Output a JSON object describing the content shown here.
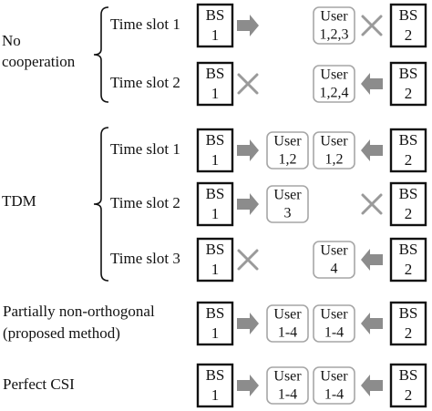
{
  "colors": {
    "stroke": "#111111",
    "arrow": "#8c8c8c",
    "user_border": "#a6a6a6",
    "cross": "#9a9a9a",
    "text": "#111111"
  },
  "icons": {
    "arrow": "right-arrow-icon / left-arrow-icon",
    "cross": "cross-icon"
  },
  "groups": [
    {
      "id": "no-cooperation",
      "label_lines": [
        "No",
        "cooperation"
      ]
    },
    {
      "id": "tdm",
      "label_lines": [
        "TDM"
      ]
    }
  ],
  "rows": [
    {
      "slot": "Time slot 1",
      "left_bs": [
        "BS",
        "1"
      ],
      "left_state": "arrow",
      "user_left": null,
      "user_right": [
        "User",
        "1,2,3"
      ],
      "right_state": "cross",
      "right_bs": [
        "BS",
        "2"
      ]
    },
    {
      "slot": "Time slot 2",
      "left_bs": [
        "BS",
        "1"
      ],
      "left_state": "cross",
      "user_left": null,
      "user_right": [
        "User",
        "1,2,4"
      ],
      "right_state": "arrow",
      "right_bs": [
        "BS",
        "2"
      ]
    },
    {
      "slot": "Time slot 1",
      "left_bs": [
        "BS",
        "1"
      ],
      "left_state": "arrow",
      "user_left": [
        "User",
        "1,2"
      ],
      "user_right": [
        "User",
        "1,2"
      ],
      "right_state": "arrow",
      "right_bs": [
        "BS",
        "2"
      ]
    },
    {
      "slot": "Time slot 2",
      "left_bs": [
        "BS",
        "1"
      ],
      "left_state": "arrow",
      "user_left": [
        "User",
        "3"
      ],
      "user_right": null,
      "right_state": "cross",
      "right_bs": [
        "BS",
        "2"
      ]
    },
    {
      "slot": "Time slot 3",
      "left_bs": [
        "BS",
        "1"
      ],
      "left_state": "cross",
      "user_left": null,
      "user_right": [
        "User",
        "4"
      ],
      "right_state": "arrow",
      "right_bs": [
        "BS",
        "2"
      ]
    },
    {
      "slot": "",
      "label_lines": [
        "Partially non-orthogonal",
        "(proposed method)"
      ],
      "left_bs": [
        "BS",
        "1"
      ],
      "left_state": "arrow",
      "user_left": [
        "User",
        "1-4"
      ],
      "user_right": [
        "User",
        "1-4"
      ],
      "right_state": "arrow",
      "right_bs": [
        "BS",
        "2"
      ]
    },
    {
      "slot": "",
      "label_lines": [
        "Perfect CSI"
      ],
      "left_bs": [
        "BS",
        "1"
      ],
      "left_state": "arrow",
      "user_left": [
        "User",
        "1-4"
      ],
      "user_right": [
        "User",
        "1-4"
      ],
      "right_state": "arrow",
      "right_bs": [
        "BS",
        "2"
      ]
    }
  ]
}
